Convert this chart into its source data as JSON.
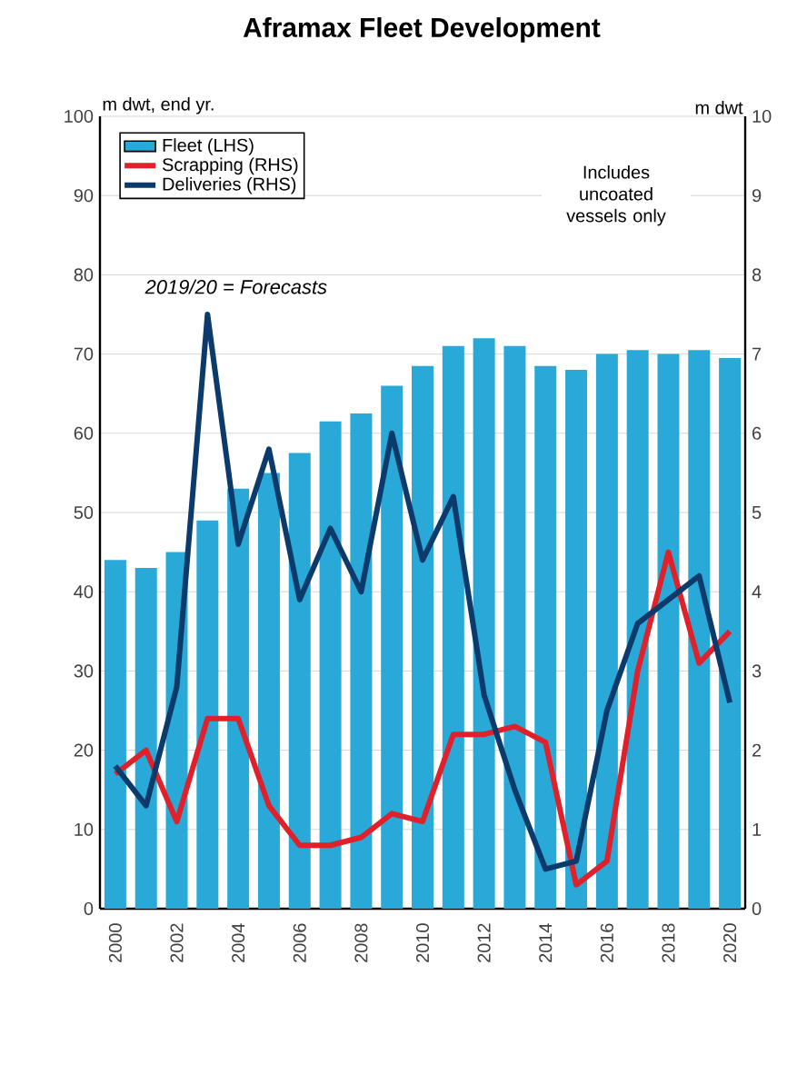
{
  "chart_data": {
    "type": "bar",
    "title": "Aframax Fleet Development",
    "categories": [
      "2000",
      null,
      "2002",
      null,
      "2004",
      null,
      "2006",
      null,
      "2008",
      null,
      "2010",
      null,
      "2012",
      null,
      "2014",
      null,
      "2016",
      null,
      "2018",
      null,
      "2020"
    ],
    "series": [
      {
        "name": "Fleet (LHS)",
        "color": "#29a9d8",
        "values": [
          44,
          43,
          45,
          49,
          53,
          55,
          57.5,
          61.5,
          62.5,
          66,
          68.5,
          71,
          72,
          71,
          68.5,
          68,
          70,
          70.5,
          70,
          70.5,
          69.5
        ]
      },
      {
        "name": "Scrapping (RHS)",
        "type": "line",
        "axis": "y2",
        "color": "#e0202a",
        "values": [
          1.7,
          2.0,
          1.1,
          2.4,
          2.4,
          1.3,
          0.8,
          0.8,
          0.9,
          1.2,
          1.1,
          2.2,
          2.2,
          2.3,
          2.1,
          0.3,
          0.6,
          3.0,
          4.5,
          3.1,
          3.5
        ]
      },
      {
        "name": "Deliveries (RHS)",
        "type": "line",
        "axis": "y2",
        "color": "#0b3a6b",
        "values": [
          1.8,
          1.3,
          2.8,
          7.5,
          4.6,
          5.8,
          3.9,
          4.8,
          4.0,
          6.0,
          4.4,
          5.2,
          2.7,
          1.5,
          0.5,
          0.6,
          2.5,
          3.6,
          3.9,
          4.2,
          2.6
        ]
      }
    ],
    "ylabel": "m dwt, end yr.",
    "y2label": "m dwt",
    "ylim": [
      0,
      100
    ],
    "yticks": [
      0,
      10,
      20,
      30,
      40,
      50,
      60,
      70,
      80,
      90,
      100
    ],
    "y2lim": [
      0,
      10
    ],
    "y2ticks": [
      0,
      1,
      2,
      3,
      4,
      5,
      6,
      7,
      8,
      9,
      10
    ],
    "grid": "y",
    "legend": "top left",
    "line_style": "solid",
    "annotations": [
      "Includes uncoated vessels only",
      "2019/20 = Forecasts"
    ]
  }
}
